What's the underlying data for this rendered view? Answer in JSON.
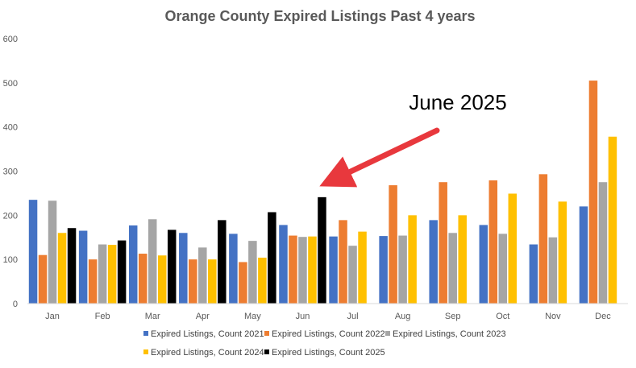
{
  "chart_data": {
    "type": "bar",
    "title": "Orange County Expired Listings Past 4 years",
    "categories": [
      "Jan",
      "Feb",
      "Mar",
      "Apr",
      "May",
      "Jun",
      "Jul",
      "Aug",
      "Sep",
      "Oct",
      "Nov",
      "Dec"
    ],
    "ylim": [
      0,
      600
    ],
    "yticks": [
      0,
      100,
      200,
      300,
      400,
      500,
      600
    ],
    "grid": false,
    "legend_position": "bottom",
    "series": [
      {
        "name": "Expired Listings, Count 2021",
        "color": "#4472C4",
        "values": [
          235,
          165,
          177,
          160,
          158,
          178,
          152,
          153,
          189,
          178,
          134,
          220
        ]
      },
      {
        "name": "Expired Listings, Count 2022",
        "color": "#ED7D31",
        "values": [
          110,
          100,
          113,
          100,
          94,
          154,
          189,
          268,
          275,
          279,
          293,
          505
        ]
      },
      {
        "name": "Expired Listings, Count 2023",
        "color": "#A5A5A5",
        "values": [
          233,
          134,
          191,
          127,
          142,
          151,
          131,
          154,
          160,
          158,
          150,
          275
        ]
      },
      {
        "name": "Expired Listings, Count 2024",
        "color": "#FFC000",
        "values": [
          160,
          133,
          109,
          100,
          104,
          152,
          163,
          200,
          200,
          249,
          231,
          378
        ]
      },
      {
        "name": "Expired Listings, Count 2025",
        "color": "#000000",
        "values": [
          171,
          143,
          167,
          189,
          207,
          241,
          null,
          null,
          null,
          null,
          null,
          null
        ]
      }
    ],
    "annotation": {
      "text": "June 2025",
      "arrow_color": "#E8383D"
    }
  }
}
